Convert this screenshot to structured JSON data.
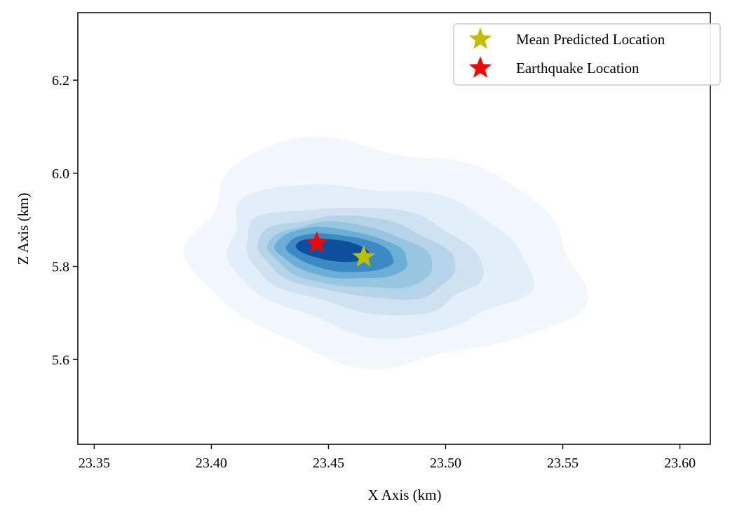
{
  "chart_data": {
    "type": "density_contour",
    "xlabel": "X Axis (km)",
    "ylabel": "Z Axis (km)",
    "xlim": [
      23.343,
      23.613
    ],
    "ylim": [
      5.418,
      6.345
    ],
    "xticks": [
      23.35,
      23.4,
      23.45,
      23.5,
      23.55,
      23.6
    ],
    "xtick_labels": [
      "23.35",
      "23.40",
      "23.45",
      "23.50",
      "23.55",
      "23.60"
    ],
    "yticks": [
      5.6,
      5.8,
      6.0,
      6.2
    ],
    "ytick_labels": [
      "5.6",
      "5.8",
      "6.0",
      "6.2"
    ],
    "grid": false,
    "legend_position": "top-right",
    "colormap": "Blues",
    "contour_levels": [
      {
        "level": 1,
        "color": "#f2f7fd",
        "x_span": [
          23.39,
          23.556
        ],
        "z_span": [
          5.595,
          6.06
        ]
      },
      {
        "level": 2,
        "color": "#e2eef9",
        "x_span": [
          23.405,
          23.535
        ],
        "z_span": [
          5.66,
          5.975
        ]
      },
      {
        "level": 3,
        "color": "#d0e2f2",
        "x_span": [
          23.414,
          23.516
        ],
        "z_span": [
          5.705,
          5.928
        ]
      },
      {
        "level": 4,
        "color": "#b5d4e9",
        "x_span": [
          23.42,
          23.505
        ],
        "z_span": [
          5.735,
          5.905
        ]
      },
      {
        "level": 5,
        "color": "#98c6e0",
        "x_span": [
          23.424,
          23.495
        ],
        "z_span": [
          5.755,
          5.89
        ]
      },
      {
        "level": 6,
        "color": "#6baed6",
        "x_span": [
          23.427,
          23.484
        ],
        "z_span": [
          5.775,
          5.88
        ]
      },
      {
        "level": 7,
        "color": "#3c8ac4",
        "x_span": [
          23.432,
          23.478
        ],
        "z_span": [
          5.79,
          5.868
        ]
      },
      {
        "level": 8,
        "color": "#0d4f9a",
        "x_span": [
          23.436,
          23.468
        ],
        "z_span": [
          5.812,
          5.858
        ]
      }
    ],
    "series": [
      {
        "name": "Mean Predicted Location",
        "marker": "star",
        "color": "#bfbf00",
        "x": 23.465,
        "z": 5.82
      },
      {
        "name": "Earthquake Location",
        "marker": "star",
        "color": "#ff0000",
        "x": 23.445,
        "z": 5.85
      }
    ]
  }
}
